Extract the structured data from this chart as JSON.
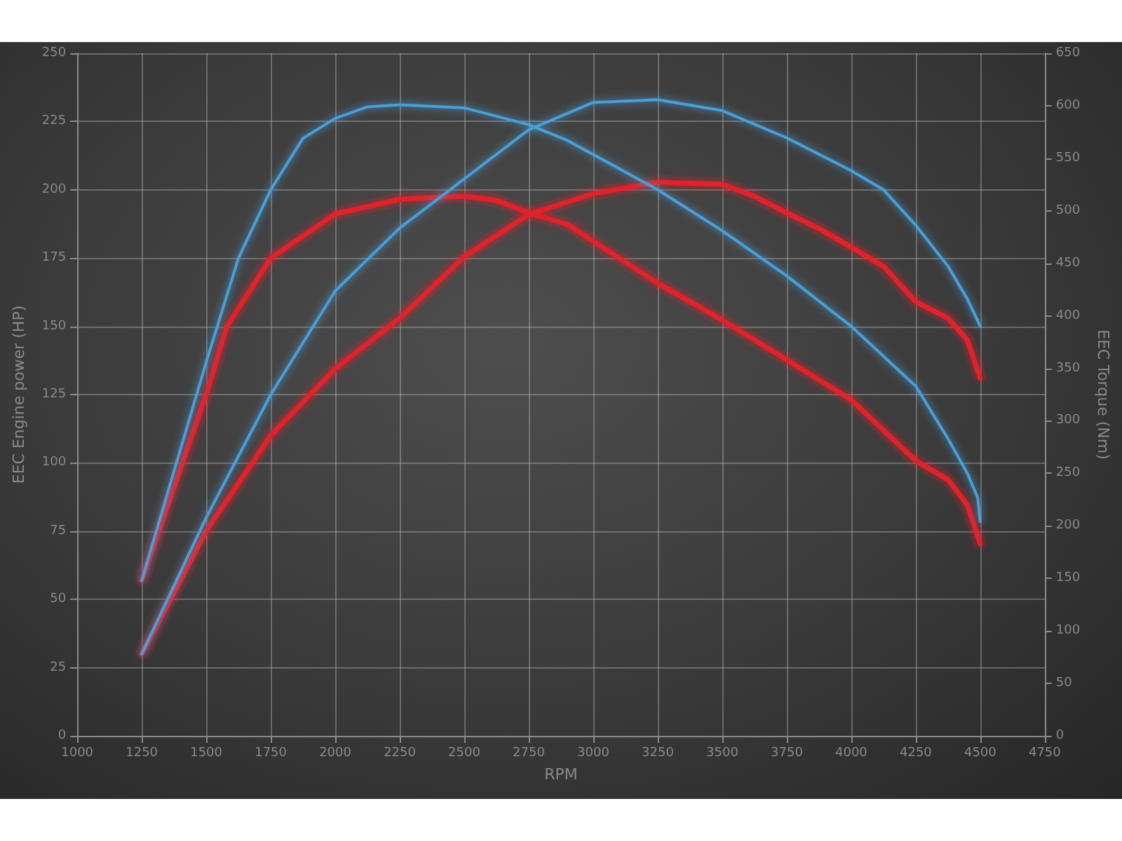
{
  "chart_data": {
    "type": "line",
    "xlabel": "RPM",
    "ylabel": "EEC Engine power (HP)",
    "y2label": "EEC Torque (Nm)",
    "xlim": [
      1000,
      4750
    ],
    "xticks": [
      1000,
      1250,
      1500,
      1750,
      2000,
      2250,
      2500,
      2750,
      3000,
      3250,
      3500,
      3750,
      4000,
      4250,
      4500,
      4750
    ],
    "ylim": [
      0,
      250
    ],
    "yticks": [
      0,
      25,
      50,
      75,
      100,
      125,
      150,
      175,
      200,
      225,
      250
    ],
    "y2lim": [
      0,
      650
    ],
    "y2ticks": [
      0,
      50,
      100,
      150,
      200,
      250,
      300,
      350,
      400,
      450,
      500,
      550,
      600,
      650
    ],
    "grid": true,
    "line_style": "solid",
    "series": [
      {
        "color": "#4a9fd8",
        "axis": "y2",
        "x": [
          1250,
          1500,
          1625,
          1750,
          1875,
          2000,
          2125,
          2250,
          2500,
          2750,
          2900,
          3250,
          3500,
          3750,
          4000,
          4250,
          4375,
          4450,
          4490,
          4500
        ],
        "values": [
          148,
          356,
          455,
          520,
          569,
          588,
          599,
          601,
          598,
          582,
          567,
          520,
          481,
          438,
          390,
          333,
          283,
          250,
          227,
          204
        ]
      },
      {
        "color": "#e0202a",
        "axis": "y2",
        "x": [
          1250,
          1500,
          1580,
          1750,
          2000,
          2250,
          2500,
          2625,
          2750,
          2900,
          3250,
          3500,
          3750,
          4000,
          4125,
          4250,
          4375,
          4450,
          4500
        ],
        "values": [
          148,
          325,
          390,
          455,
          497,
          511,
          514,
          510,
          498,
          487,
          431,
          396,
          358,
          320,
          291,
          262,
          244,
          220,
          183
        ]
      },
      {
        "color": "#4a9fd8",
        "x": [
          1250,
          1500,
          1750,
          2000,
          2250,
          2500,
          2750,
          3000,
          3250,
          3500,
          3750,
          4000,
          4125,
          4250,
          4375,
          4450,
          4500
        ],
        "values": [
          30,
          80,
          125,
          163,
          186,
          204,
          222,
          232,
          233,
          229,
          219,
          207,
          200,
          187,
          172,
          160,
          150
        ]
      },
      {
        "color": "#e0202a",
        "x": [
          1250,
          1500,
          1750,
          2000,
          2250,
          2500,
          2750,
          3000,
          3250,
          3500,
          3625,
          3750,
          3875,
          4000,
          4125,
          4250,
          4375,
          4450,
          4500
        ],
        "values": [
          30,
          75,
          110,
          134.5,
          153,
          175.5,
          191,
          198.6,
          202.8,
          202,
          197.6,
          191.6,
          185.8,
          179,
          172,
          159,
          153,
          145,
          131
        ]
      }
    ]
  }
}
